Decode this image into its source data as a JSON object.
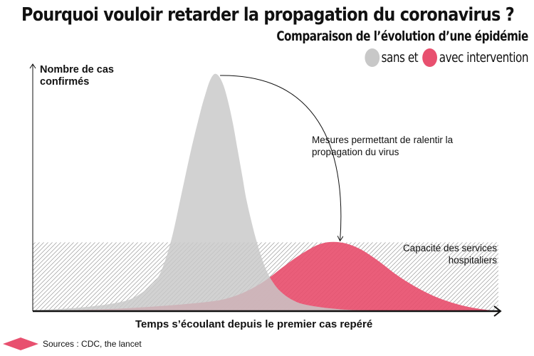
{
  "title": "Pourquoi vouloir retarder la propagation du coronavirus ?",
  "subtitle": "Comparaison de l’évolution d’une épidémie",
  "legend": {
    "sans_label": "sans et",
    "avec_label": "avec intervention",
    "sans_color": "#c8c8c8",
    "avec_color": "#e8506f"
  },
  "chart_data": {
    "type": "area",
    "title": "Pourquoi vouloir retarder la propagation du coronavirus ?",
    "subtitle": "Comparaison de l’évolution d’une épidémie",
    "ylabel": "Nombre de cas confirmés",
    "xlabel": "Temps s’écoulant depuis le premier cas repéré",
    "xlim": [
      0,
      100
    ],
    "ylim": [
      0,
      100
    ],
    "grid": false,
    "legend_position": "top-right",
    "series": [
      {
        "name": "sans",
        "color": "#c8c8c8",
        "x": [
          0,
          10,
          18,
          22,
          26,
          28,
          30,
          32,
          34,
          36,
          37,
          38,
          39,
          40,
          41,
          42,
          43,
          44,
          45,
          46,
          48,
          50,
          52,
          54,
          56,
          58,
          62,
          66,
          70,
          75,
          80
        ],
        "y": [
          0.3,
          1.5,
          3.5,
          6,
          12,
          19,
          32,
          50,
          68,
          84,
          91,
          97,
          100,
          99,
          95,
          88,
          79,
          68,
          57,
          46,
          30,
          18,
          11,
          7,
          4.5,
          3,
          1.6,
          0.8,
          0.4,
          0.2,
          0
        ]
      },
      {
        "name": "avec",
        "color": "#e8506f",
        "x": [
          0,
          10,
          20,
          30,
          38,
          42,
          46,
          50,
          54,
          58,
          62,
          66,
          70,
          74,
          78,
          82,
          86,
          90,
          94,
          98,
          100
        ],
        "y": [
          0,
          0.5,
          1.2,
          2.5,
          4,
          5.5,
          8.5,
          13,
          19,
          24.5,
          28.5,
          29,
          26.5,
          21.5,
          15.5,
          10.5,
          6.5,
          3.6,
          1.6,
          0.4,
          0
        ]
      }
    ],
    "capacity": {
      "label": "Capacité des services hospitaliers",
      "y": 29
    },
    "annotation": "Mesures permettant de ralentir la propagation du virus"
  },
  "sources": "Sources : CDC, the lancet"
}
